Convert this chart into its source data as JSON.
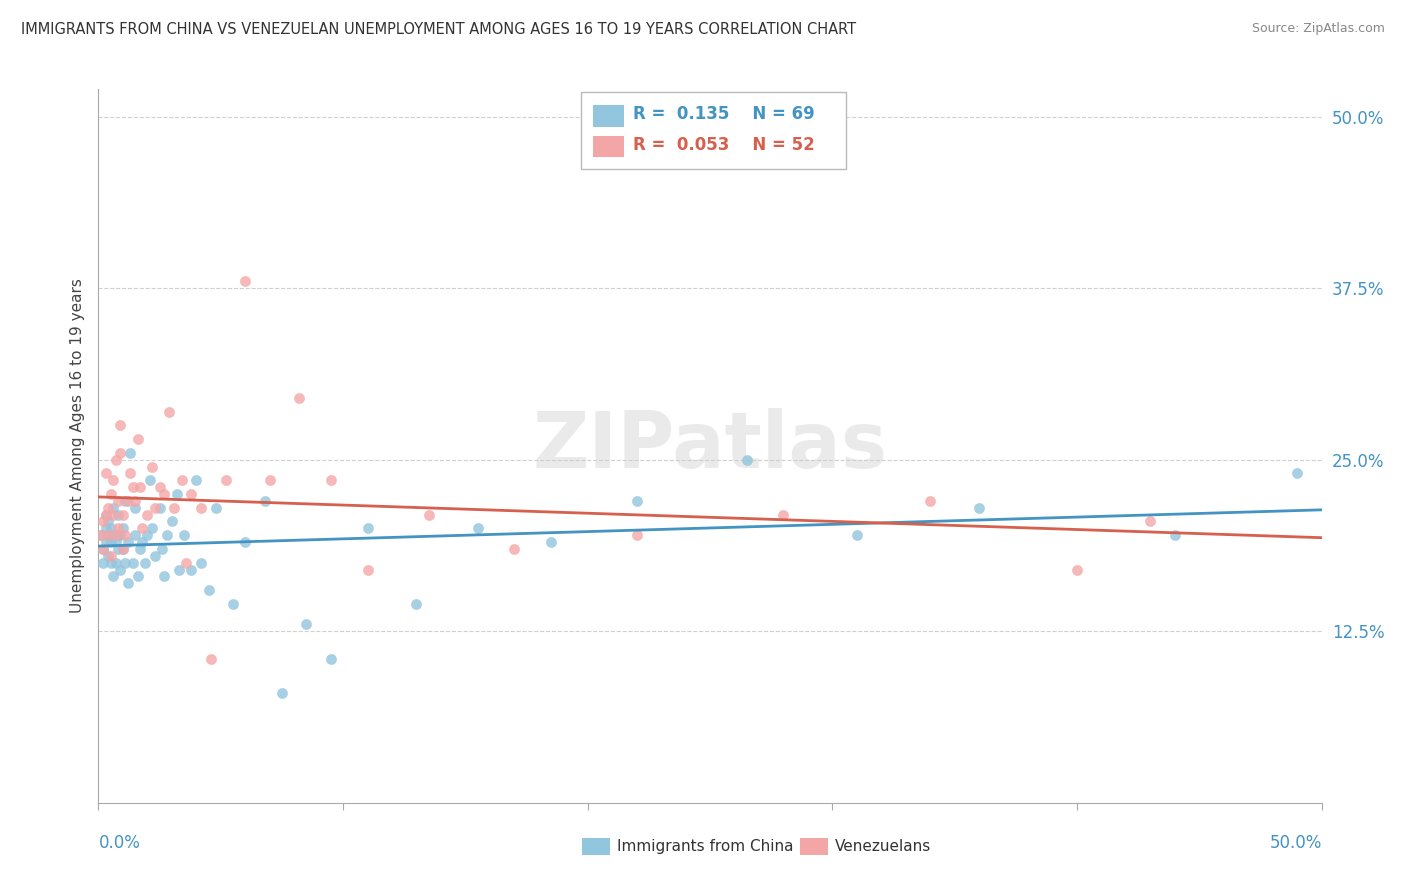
{
  "title": "IMMIGRANTS FROM CHINA VS VENEZUELAN UNEMPLOYMENT AMONG AGES 16 TO 19 YEARS CORRELATION CHART",
  "source": "Source: ZipAtlas.com",
  "ylabel": "Unemployment Among Ages 16 to 19 years",
  "right_yticks": [
    "50.0%",
    "37.5%",
    "25.0%",
    "12.5%"
  ],
  "right_ytick_vals": [
    0.5,
    0.375,
    0.25,
    0.125
  ],
  "legend1_r": "0.135",
  "legend1_n": "69",
  "legend2_r": "0.053",
  "legend2_n": "52",
  "blue_color": "#92c5de",
  "pink_color": "#f4a6a6",
  "blue_line_color": "#4393c3",
  "pink_line_color": "#d6604d",
  "title_color": "#333333",
  "source_color": "#888888",
  "watermark": "ZIPatlas",
  "blue_points_x": [
    0.001,
    0.002,
    0.002,
    0.003,
    0.003,
    0.003,
    0.004,
    0.004,
    0.004,
    0.005,
    0.005,
    0.005,
    0.006,
    0.006,
    0.006,
    0.007,
    0.007,
    0.008,
    0.008,
    0.008,
    0.009,
    0.009,
    0.01,
    0.01,
    0.011,
    0.011,
    0.012,
    0.012,
    0.013,
    0.014,
    0.015,
    0.015,
    0.016,
    0.017,
    0.018,
    0.019,
    0.02,
    0.021,
    0.022,
    0.023,
    0.025,
    0.026,
    0.027,
    0.028,
    0.03,
    0.032,
    0.033,
    0.035,
    0.038,
    0.04,
    0.042,
    0.045,
    0.048,
    0.055,
    0.06,
    0.068,
    0.075,
    0.085,
    0.095,
    0.11,
    0.13,
    0.155,
    0.185,
    0.22,
    0.265,
    0.31,
    0.36,
    0.44,
    0.49
  ],
  "blue_points_y": [
    0.195,
    0.185,
    0.175,
    0.2,
    0.19,
    0.21,
    0.18,
    0.195,
    0.205,
    0.175,
    0.19,
    0.2,
    0.165,
    0.195,
    0.215,
    0.175,
    0.19,
    0.185,
    0.195,
    0.21,
    0.17,
    0.195,
    0.185,
    0.2,
    0.175,
    0.22,
    0.19,
    0.16,
    0.255,
    0.175,
    0.195,
    0.215,
    0.165,
    0.185,
    0.19,
    0.175,
    0.195,
    0.235,
    0.2,
    0.18,
    0.215,
    0.185,
    0.165,
    0.195,
    0.205,
    0.225,
    0.17,
    0.195,
    0.17,
    0.235,
    0.175,
    0.155,
    0.215,
    0.145,
    0.19,
    0.22,
    0.08,
    0.13,
    0.105,
    0.2,
    0.145,
    0.2,
    0.19,
    0.22,
    0.25,
    0.195,
    0.215,
    0.195,
    0.24
  ],
  "pink_points_x": [
    0.001,
    0.002,
    0.002,
    0.003,
    0.003,
    0.004,
    0.004,
    0.005,
    0.005,
    0.006,
    0.006,
    0.007,
    0.007,
    0.008,
    0.008,
    0.009,
    0.009,
    0.01,
    0.01,
    0.011,
    0.012,
    0.013,
    0.014,
    0.015,
    0.016,
    0.017,
    0.018,
    0.02,
    0.022,
    0.023,
    0.025,
    0.027,
    0.029,
    0.031,
    0.034,
    0.036,
    0.038,
    0.042,
    0.046,
    0.052,
    0.06,
    0.07,
    0.082,
    0.095,
    0.11,
    0.135,
    0.17,
    0.22,
    0.28,
    0.34,
    0.4,
    0.43
  ],
  "pink_points_y": [
    0.195,
    0.185,
    0.205,
    0.21,
    0.24,
    0.195,
    0.215,
    0.18,
    0.225,
    0.21,
    0.235,
    0.195,
    0.25,
    0.22,
    0.2,
    0.275,
    0.255,
    0.21,
    0.185,
    0.195,
    0.22,
    0.24,
    0.23,
    0.22,
    0.265,
    0.23,
    0.2,
    0.21,
    0.245,
    0.215,
    0.23,
    0.225,
    0.285,
    0.215,
    0.235,
    0.175,
    0.225,
    0.215,
    0.105,
    0.235,
    0.38,
    0.235,
    0.295,
    0.235,
    0.17,
    0.21,
    0.185,
    0.195,
    0.21,
    0.22,
    0.17,
    0.205
  ],
  "xmin": 0.0,
  "xmax": 0.5,
  "ymin": 0.0,
  "ymax": 0.52,
  "grid_color": "#d0d0d0",
  "background_color": "#ffffff",
  "xtick_positions": [
    0.0,
    0.1,
    0.2,
    0.3,
    0.4,
    0.5
  ]
}
